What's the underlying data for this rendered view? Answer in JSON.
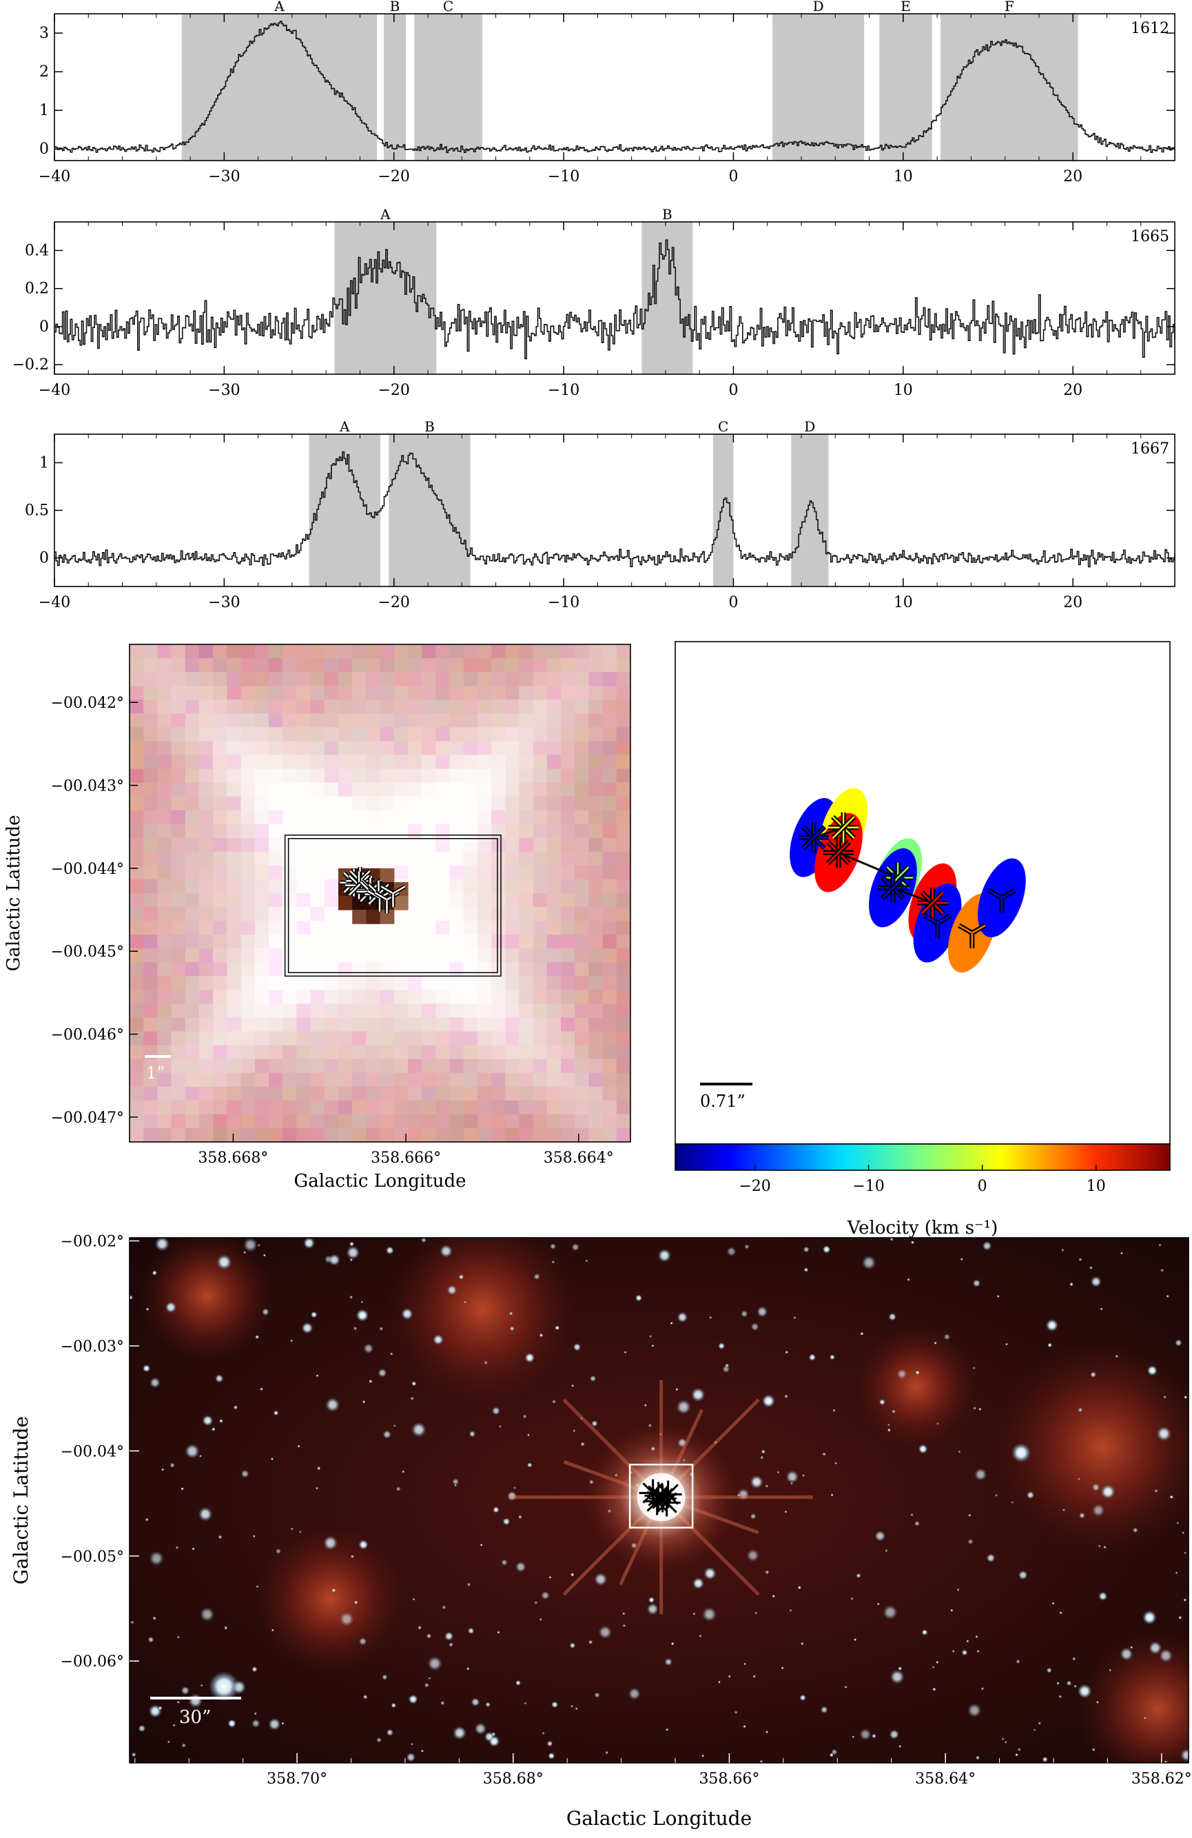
{
  "chart_data": [
    {
      "type": "line",
      "panel_label": "1612",
      "xlim": [
        -40,
        26
      ],
      "ylim": [
        -0.3,
        3.5
      ],
      "x_ticks": [
        -40,
        -30,
        -20,
        -10,
        0,
        10,
        20
      ],
      "x_tick_labels": [
        "−40",
        "−30",
        "−20",
        "−10",
        "0",
        "10",
        "20"
      ],
      "y_ticks": [
        0,
        1,
        2,
        3
      ],
      "y_tick_labels": [
        "0",
        "1",
        "2",
        "3"
      ],
      "regions": [
        {
          "label": "A",
          "x0": -32.5,
          "x1": -21.0
        },
        {
          "label": "B",
          "x0": -20.6,
          "x1": -19.3
        },
        {
          "label": "C",
          "x0": -18.8,
          "x1": -14.8
        },
        {
          "label": "D",
          "x0": 2.3,
          "x1": 7.7
        },
        {
          "label": "E",
          "x0": 8.6,
          "x1": 11.7
        },
        {
          "label": "F",
          "x0": 12.2,
          "x1": 20.3
        }
      ],
      "peaks": [
        {
          "center": -26.6,
          "amplitude": 3.1,
          "width": 2.0
        },
        {
          "center": -29.5,
          "amplitude": 1.0,
          "width": 1.4
        },
        {
          "center": -22.8,
          "amplitude": 0.7,
          "width": 1.2
        },
        {
          "center": 16.2,
          "amplitude": 2.7,
          "width": 2.4
        },
        {
          "center": 13.5,
          "amplitude": 0.6,
          "width": 1.2
        },
        {
          "center": 4.5,
          "amplitude": 0.15,
          "width": 2.0
        }
      ],
      "noise": 0.06
    },
    {
      "type": "line",
      "panel_label": "1665",
      "xlim": [
        -40,
        26
      ],
      "ylim": [
        -0.25,
        0.55
      ],
      "x_ticks": [
        -40,
        -30,
        -20,
        -10,
        0,
        10,
        20
      ],
      "x_tick_labels": [
        "−40",
        "−30",
        "−20",
        "−10",
        "0",
        "10",
        "20"
      ],
      "y_ticks": [
        -0.2,
        0,
        0.2,
        0.4
      ],
      "y_tick_labels": [
        "−0.2",
        "0",
        "0.2",
        "0.4"
      ],
      "regions": [
        {
          "label": "A",
          "x0": -23.5,
          "x1": -17.5
        },
        {
          "label": "B",
          "x0": -5.4,
          "x1": -2.4
        }
      ],
      "peaks": [
        {
          "center": -21.5,
          "amplitude": 0.26,
          "width": 1.2
        },
        {
          "center": -19.5,
          "amplitude": 0.24,
          "width": 1.0
        },
        {
          "center": -4.0,
          "amplitude": 0.42,
          "width": 0.6
        }
      ],
      "noise": 0.075
    },
    {
      "type": "line",
      "panel_label": "1667",
      "xlim": [
        -40,
        26
      ],
      "ylim": [
        -0.3,
        1.3
      ],
      "x_ticks": [
        -40,
        -30,
        -20,
        -10,
        0,
        10,
        20
      ],
      "x_tick_labels": [
        "−40",
        "−30",
        "−20",
        "−10",
        "0",
        "10",
        "20"
      ],
      "y_ticks": [
        0,
        0.5,
        1
      ],
      "y_tick_labels": [
        "0",
        "0.5",
        "1"
      ],
      "regions": [
        {
          "label": "A",
          "x0": -25.0,
          "x1": -20.8
        },
        {
          "label": "B",
          "x0": -20.3,
          "x1": -15.5
        },
        {
          "label": "C",
          "x0": -1.2,
          "x1": 0.0
        },
        {
          "label": "D",
          "x0": 3.4,
          "x1": 5.6
        }
      ],
      "peaks": [
        {
          "center": -23.2,
          "amplitude": 1.05,
          "width": 1.1
        },
        {
          "center": -19.2,
          "amplitude": 1.05,
          "width": 1.2
        },
        {
          "center": -17.0,
          "amplitude": 0.3,
          "width": 0.8
        },
        {
          "center": -0.5,
          "amplitude": 0.6,
          "width": 0.4
        },
        {
          "center": 4.5,
          "amplitude": 0.55,
          "width": 0.5
        }
      ],
      "noise": 0.05
    },
    {
      "type": "heatmap",
      "xlabel": "Galactic Longitude",
      "ylabel": "Galactic Latitude",
      "xlim": [
        358.6692,
        358.6634
      ],
      "ylim": [
        -0.0473,
        -0.0413
      ],
      "x_ticks": [
        358.668,
        358.666,
        358.664
      ],
      "x_tick_labels": [
        "358.668°",
        "358.666°",
        "358.664°"
      ],
      "y_ticks": [
        -0.042,
        -0.043,
        -0.044,
        -0.045,
        -0.046,
        -0.047
      ],
      "y_tick_labels": [
        "−00.042°",
        "−00.043°",
        "−00.044°",
        "−00.045°",
        "−00.046°",
        "−00.047°"
      ],
      "scale_bar": "1”",
      "box": {
        "l0": 358.6674,
        "l1": 358.6649,
        "b0": -0.0436,
        "b1": -0.0453
      }
    },
    {
      "type": "scatter",
      "xlabel": "Velocity (km s⁻¹)",
      "scale_bar": "0.71”",
      "colorbar_range": [
        -27,
        16.5
      ],
      "colorbar_ticks": [
        -20,
        -10,
        0,
        10
      ],
      "colorbar_tick_labels": [
        "−20",
        "−10",
        "0",
        "10"
      ],
      "colorbar_colors": [
        "#00007f",
        "#0000ff",
        "#007fff",
        "#00ffff",
        "#7fff7f",
        "#ffff00",
        "#ff7f00",
        "#ff0000",
        "#7f0000"
      ],
      "spots": [
        {
          "u": 0.28,
          "v": 0.39,
          "velocity": -24,
          "marker": "asterisk"
        },
        {
          "u": 0.34,
          "v": 0.37,
          "velocity": -2,
          "marker": "asterisk"
        },
        {
          "u": 0.33,
          "v": 0.42,
          "velocity": 10,
          "marker": "asterisk"
        },
        {
          "u": 0.45,
          "v": 0.47,
          "velocity": -4,
          "marker": "asterisk"
        },
        {
          "u": 0.44,
          "v": 0.49,
          "velocity": -22,
          "marker": "asterisk"
        },
        {
          "u": 0.52,
          "v": 0.52,
          "velocity": 12,
          "marker": "asterisk"
        },
        {
          "u": 0.53,
          "v": 0.56,
          "velocity": -20,
          "marker": "tri"
        },
        {
          "u": 0.6,
          "v": 0.58,
          "velocity": 8,
          "marker": "tri"
        },
        {
          "u": 0.66,
          "v": 0.51,
          "velocity": -21,
          "marker": "tri"
        }
      ]
    },
    {
      "type": "heatmap",
      "xlabel": "Galactic Longitude",
      "ylabel": "Galactic Latitude",
      "xlim": [
        358.7155,
        358.6175
      ],
      "ylim": [
        -0.0697,
        -0.0197
      ],
      "x_ticks": [
        358.7,
        358.68,
        358.66,
        358.64,
        358.62
      ],
      "x_tick_labels": [
        "358.70°",
        "358.68°",
        "358.66°",
        "358.64°",
        "358.62°"
      ],
      "y_ticks": [
        -0.02,
        -0.03,
        -0.04,
        -0.05,
        -0.06
      ],
      "y_tick_labels": [
        "−00.02°",
        "−00.03°",
        "−00.04°",
        "−00.05°",
        "−00.06°"
      ],
      "scale_bar": "30”",
      "source": {
        "l": 358.6663,
        "b": -0.0444
      },
      "box": {
        "l0": 358.6692,
        "l1": 358.6634,
        "b0": -0.0413,
        "b1": -0.0473
      }
    }
  ]
}
